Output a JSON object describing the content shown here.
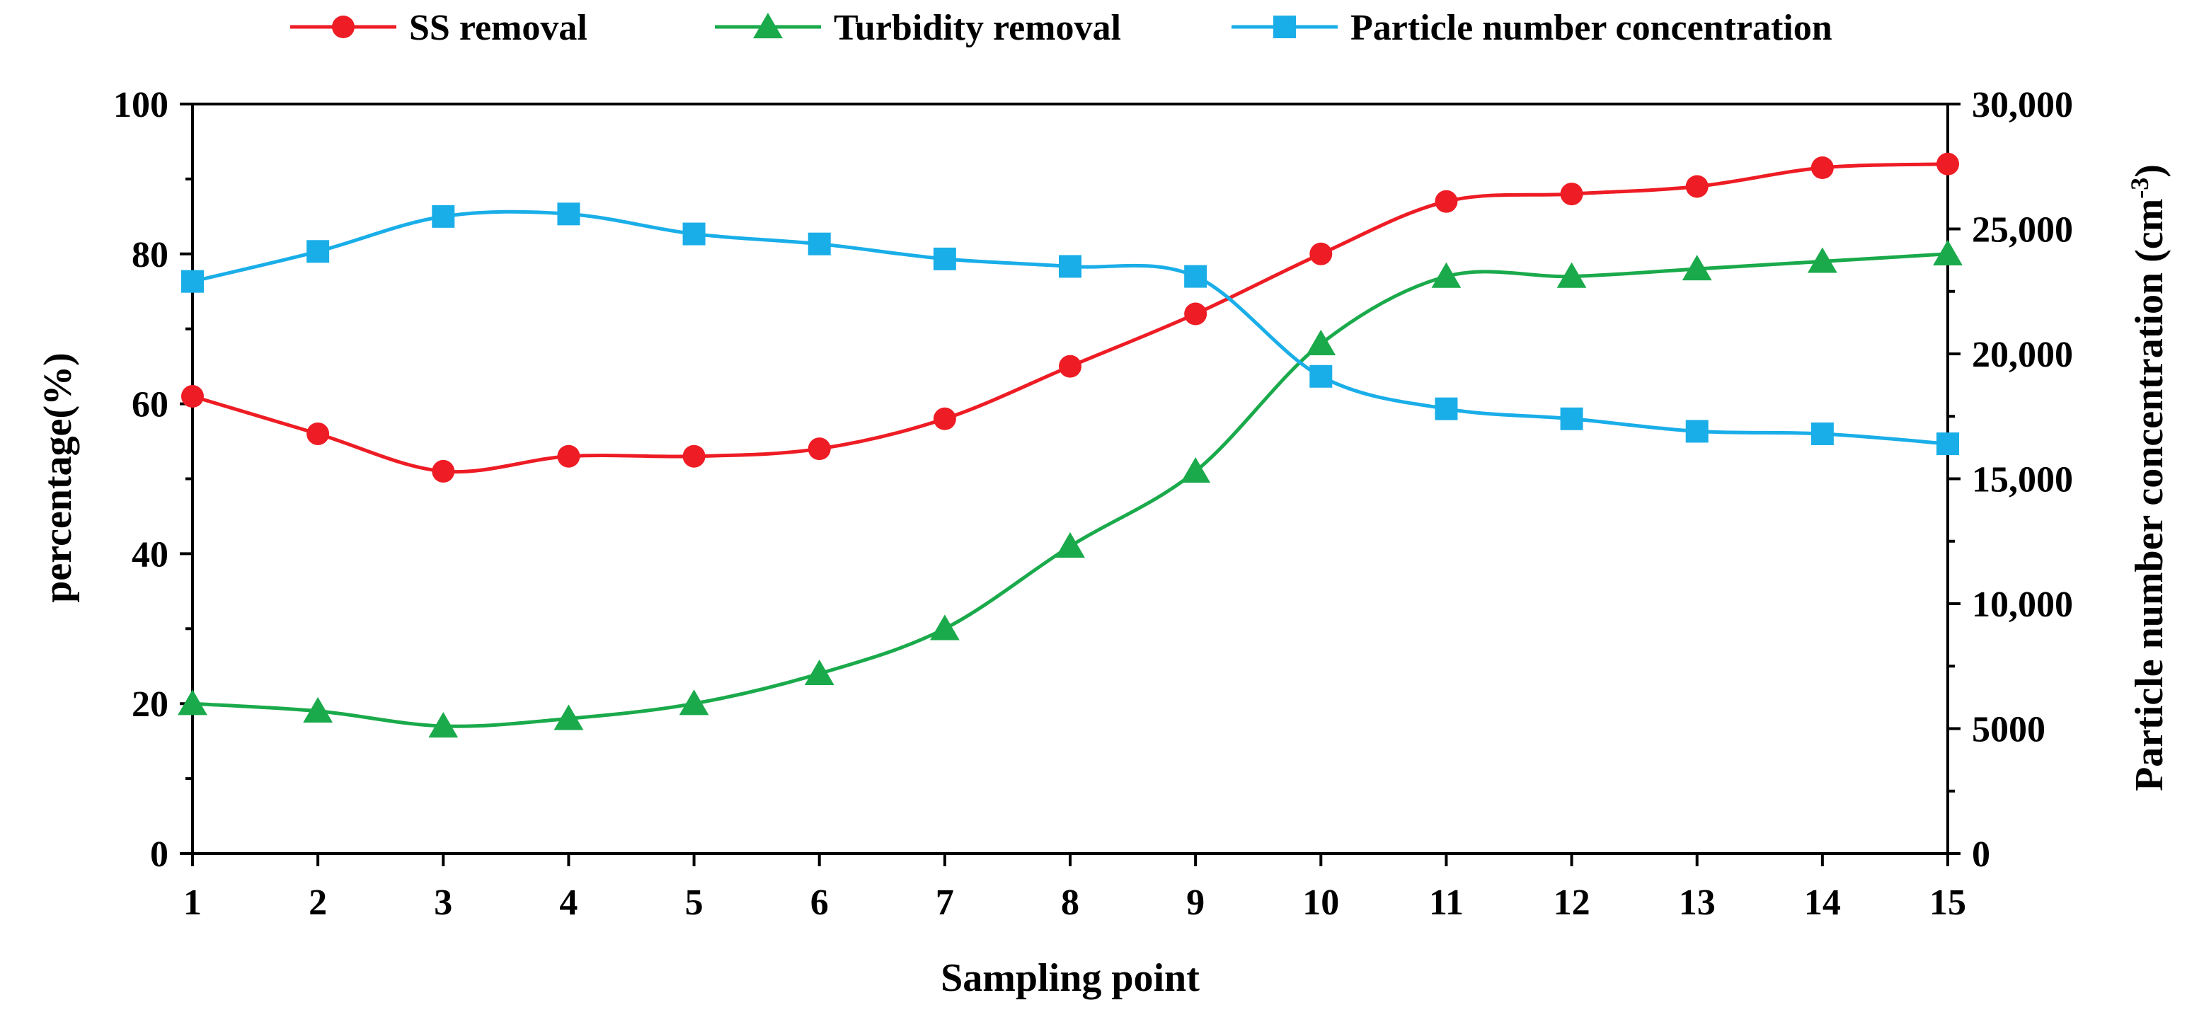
{
  "chart_data": {
    "type": "line",
    "xlabel": "Sampling point",
    "ylabel_left": "percentage(%)",
    "ylabel_right_main": "Particle number concentration (cm",
    "ylabel_right_sup": "-3",
    "ylabel_right_close": ")",
    "x": [
      1,
      2,
      3,
      4,
      5,
      6,
      7,
      8,
      9,
      10,
      11,
      12,
      13,
      14,
      15
    ],
    "x_tick_labels": [
      "1",
      "2",
      "3",
      "4",
      "5",
      "6",
      "7",
      "8",
      "9",
      "10",
      "11",
      "12",
      "13",
      "14",
      "15"
    ],
    "xlim": [
      1,
      15
    ],
    "ylim_left": [
      0,
      100
    ],
    "ylim_right": [
      0,
      30000
    ],
    "left_ticks": [
      0,
      20,
      40,
      60,
      80,
      100
    ],
    "left_tick_labels": [
      "0",
      "20",
      "40",
      "60",
      "80",
      "100"
    ],
    "right_ticks": [
      0,
      5000,
      10000,
      15000,
      20000,
      25000,
      30000
    ],
    "right_tick_labels": [
      "0",
      "5000",
      "10,000",
      "15,000",
      "20,000",
      "25,000",
      "30,000"
    ],
    "grid": false,
    "legend_position": "top",
    "series": [
      {
        "name": "SS removal",
        "axis": "left",
        "color": "#ee1c24",
        "marker": "circle",
        "values": [
          61,
          56,
          51,
          53,
          53,
          54,
          58,
          65,
          72,
          80,
          87,
          88,
          89,
          91.5,
          92
        ]
      },
      {
        "name": "Turbidity removal",
        "axis": "left",
        "color": "#1aaa4b",
        "marker": "triangle",
        "values": [
          20,
          19,
          17,
          18,
          20,
          24,
          30,
          41,
          51,
          68,
          77,
          77,
          78,
          79,
          80
        ]
      },
      {
        "name": "Particle number concentration",
        "axis": "right",
        "color": "#1aaee8",
        "marker": "square",
        "values": [
          22900,
          24100,
          25500,
          25600,
          24800,
          24400,
          23800,
          23500,
          23100,
          19100,
          17800,
          17400,
          16900,
          16800,
          16400
        ]
      }
    ]
  }
}
